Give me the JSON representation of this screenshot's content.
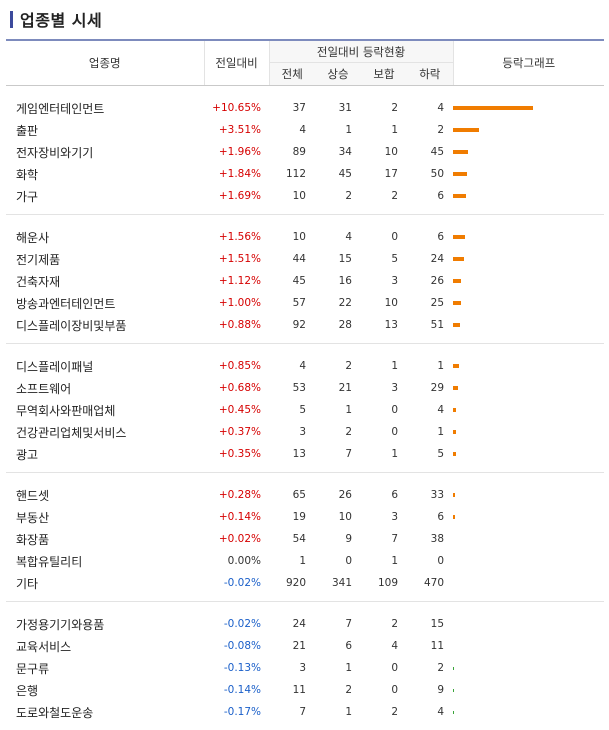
{
  "title": "업종별 시세",
  "headers": {
    "name": "업종명",
    "change": "전일대비",
    "group": "전일대비 등락현황",
    "total": "전체",
    "up": "상승",
    "flat": "보합",
    "down": "하락",
    "graph": "등락그래프"
  },
  "colors": {
    "up": "#d60000",
    "down": "#1a5fc9",
    "bar_up": "#f07c00",
    "bar_down": "#3aa53a",
    "title_bar": "#3c4a9c"
  },
  "groups": [
    [
      {
        "name": "게임엔터테인먼트",
        "change": "+10.65%",
        "dir": "up",
        "total": "37",
        "up": "31",
        "flat": "2",
        "down": "4",
        "bar": 10.65
      },
      {
        "name": "출판",
        "change": "+3.51%",
        "dir": "up",
        "total": "4",
        "up": "1",
        "flat": "1",
        "down": "2",
        "bar": 3.51
      },
      {
        "name": "전자장비와기기",
        "change": "+1.96%",
        "dir": "up",
        "total": "89",
        "up": "34",
        "flat": "10",
        "down": "45",
        "bar": 1.96
      },
      {
        "name": "화학",
        "change": "+1.84%",
        "dir": "up",
        "total": "112",
        "up": "45",
        "flat": "17",
        "down": "50",
        "bar": 1.84
      },
      {
        "name": "가구",
        "change": "+1.69%",
        "dir": "up",
        "total": "10",
        "up": "2",
        "flat": "2",
        "down": "6",
        "bar": 1.69
      }
    ],
    [
      {
        "name": "해운사",
        "change": "+1.56%",
        "dir": "up",
        "total": "10",
        "up": "4",
        "flat": "0",
        "down": "6",
        "bar": 1.56
      },
      {
        "name": "전기제품",
        "change": "+1.51%",
        "dir": "up",
        "total": "44",
        "up": "15",
        "flat": "5",
        "down": "24",
        "bar": 1.51
      },
      {
        "name": "건축자재",
        "change": "+1.12%",
        "dir": "up",
        "total": "45",
        "up": "16",
        "flat": "3",
        "down": "26",
        "bar": 1.12
      },
      {
        "name": "방송과엔터테인먼트",
        "change": "+1.00%",
        "dir": "up",
        "total": "57",
        "up": "22",
        "flat": "10",
        "down": "25",
        "bar": 1.0
      },
      {
        "name": "디스플레이장비및부품",
        "change": "+0.88%",
        "dir": "up",
        "total": "92",
        "up": "28",
        "flat": "13",
        "down": "51",
        "bar": 0.88
      }
    ],
    [
      {
        "name": "디스플레이패널",
        "change": "+0.85%",
        "dir": "up",
        "total": "4",
        "up": "2",
        "flat": "1",
        "down": "1",
        "bar": 0.85
      },
      {
        "name": "소프트웨어",
        "change": "+0.68%",
        "dir": "up",
        "total": "53",
        "up": "21",
        "flat": "3",
        "down": "29",
        "bar": 0.68
      },
      {
        "name": "무역회사와판매업체",
        "change": "+0.45%",
        "dir": "up",
        "total": "5",
        "up": "1",
        "flat": "0",
        "down": "4",
        "bar": 0.45
      },
      {
        "name": "건강관리업체및서비스",
        "change": "+0.37%",
        "dir": "up",
        "total": "3",
        "up": "2",
        "flat": "0",
        "down": "1",
        "bar": 0.37
      },
      {
        "name": "광고",
        "change": "+0.35%",
        "dir": "up",
        "total": "13",
        "up": "7",
        "flat": "1",
        "down": "5",
        "bar": 0.35
      }
    ],
    [
      {
        "name": "핸드셋",
        "change": "+0.28%",
        "dir": "up",
        "total": "65",
        "up": "26",
        "flat": "6",
        "down": "33",
        "bar": 0.28
      },
      {
        "name": "부동산",
        "change": "+0.14%",
        "dir": "up",
        "total": "19",
        "up": "10",
        "flat": "3",
        "down": "6",
        "bar": 0.14
      },
      {
        "name": "화장품",
        "change": "+0.02%",
        "dir": "up",
        "total": "54",
        "up": "9",
        "flat": "7",
        "down": "38",
        "bar": 0
      },
      {
        "name": "복합유틸리티",
        "change": "0.00%",
        "dir": "flat",
        "total": "1",
        "up": "0",
        "flat": "1",
        "down": "0",
        "bar": 0
      },
      {
        "name": "기타",
        "change": "-0.02%",
        "dir": "down",
        "total": "920",
        "up": "341",
        "flat": "109",
        "down": "470",
        "bar": 0
      }
    ],
    [
      {
        "name": "가정용기기와용품",
        "change": "-0.02%",
        "dir": "down",
        "total": "24",
        "up": "7",
        "flat": "2",
        "down": "15",
        "bar": 0
      },
      {
        "name": "교육서비스",
        "change": "-0.08%",
        "dir": "down",
        "total": "21",
        "up": "6",
        "flat": "4",
        "down": "11",
        "bar": 0
      },
      {
        "name": "문구류",
        "change": "-0.13%",
        "dir": "down",
        "total": "3",
        "up": "1",
        "flat": "0",
        "down": "2",
        "bar": 0.13
      },
      {
        "name": "은행",
        "change": "-0.14%",
        "dir": "down",
        "total": "11",
        "up": "2",
        "flat": "0",
        "down": "9",
        "bar": 0.14
      },
      {
        "name": "도로와철도운송",
        "change": "-0.17%",
        "dir": "down",
        "total": "7",
        "up": "1",
        "flat": "2",
        "down": "4",
        "bar": 0.17
      }
    ]
  ]
}
